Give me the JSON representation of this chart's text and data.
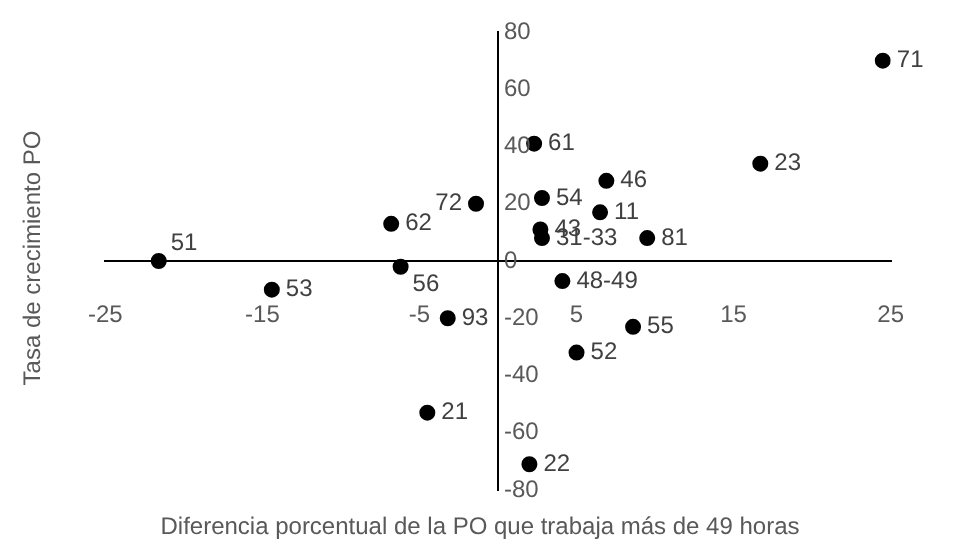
{
  "chart_data": {
    "type": "scatter",
    "xlabel": "Diferencia porcentual de la PO que trabaja más de 49 horas",
    "ylabel": "Tasa de crecimiento PO",
    "xlim": [
      -25,
      25
    ],
    "xticks": [
      -25,
      -15,
      -5,
      5,
      15,
      25
    ],
    "ylim": [
      -80,
      80
    ],
    "yticks": [
      -80,
      -60,
      -40,
      -20,
      0,
      20,
      40,
      60,
      80
    ],
    "grid": false,
    "legend": false,
    "marker": "circle",
    "series": [
      {
        "color": "#000000",
        "x": [
          -21.6,
          -14.4,
          -6.2,
          -6.8,
          -1.4,
          -3.2,
          -4.5,
          2.3,
          2.8,
          6.9,
          6.5,
          2.7,
          2.8,
          9.5,
          16.7,
          24.5,
          4.1,
          8.6,
          5.0,
          2.0
        ],
        "values": [
          0,
          -10,
          -2,
          13,
          20,
          -20,
          -53,
          41,
          22,
          28,
          17,
          11,
          8,
          8,
          34,
          70,
          -7,
          -23,
          -32,
          -71
        ]
      }
    ],
    "annotations": [
      {
        "text": "51",
        "x": -21.6,
        "y": 0
      },
      {
        "text": "53",
        "x": -14.4,
        "y": -10
      },
      {
        "text": "56",
        "x": -6.2,
        "y": -2
      },
      {
        "text": "62",
        "x": -6.8,
        "y": 13
      },
      {
        "text": "72",
        "x": -1.4,
        "y": 20
      },
      {
        "text": "93",
        "x": -3.2,
        "y": -20
      },
      {
        "text": "21",
        "x": -4.5,
        "y": -53
      },
      {
        "text": "61",
        "x": 2.3,
        "y": 41
      },
      {
        "text": "54",
        "x": 2.8,
        "y": 22
      },
      {
        "text": "46",
        "x": 6.9,
        "y": 28
      },
      {
        "text": "11",
        "x": 6.5,
        "y": 17
      },
      {
        "text": "43",
        "x": 2.7,
        "y": 11
      },
      {
        "text": "31-33",
        "x": 2.8,
        "y": 8
      },
      {
        "text": "81",
        "x": 9.5,
        "y": 8
      },
      {
        "text": "23",
        "x": 16.7,
        "y": 34
      },
      {
        "text": "71",
        "x": 24.5,
        "y": 70
      },
      {
        "text": "48-49",
        "x": 4.1,
        "y": -7
      },
      {
        "text": "55",
        "x": 8.6,
        "y": -23
      },
      {
        "text": "52",
        "x": 5.0,
        "y": -32
      },
      {
        "text": "22",
        "x": 2.0,
        "y": -71
      }
    ]
  }
}
